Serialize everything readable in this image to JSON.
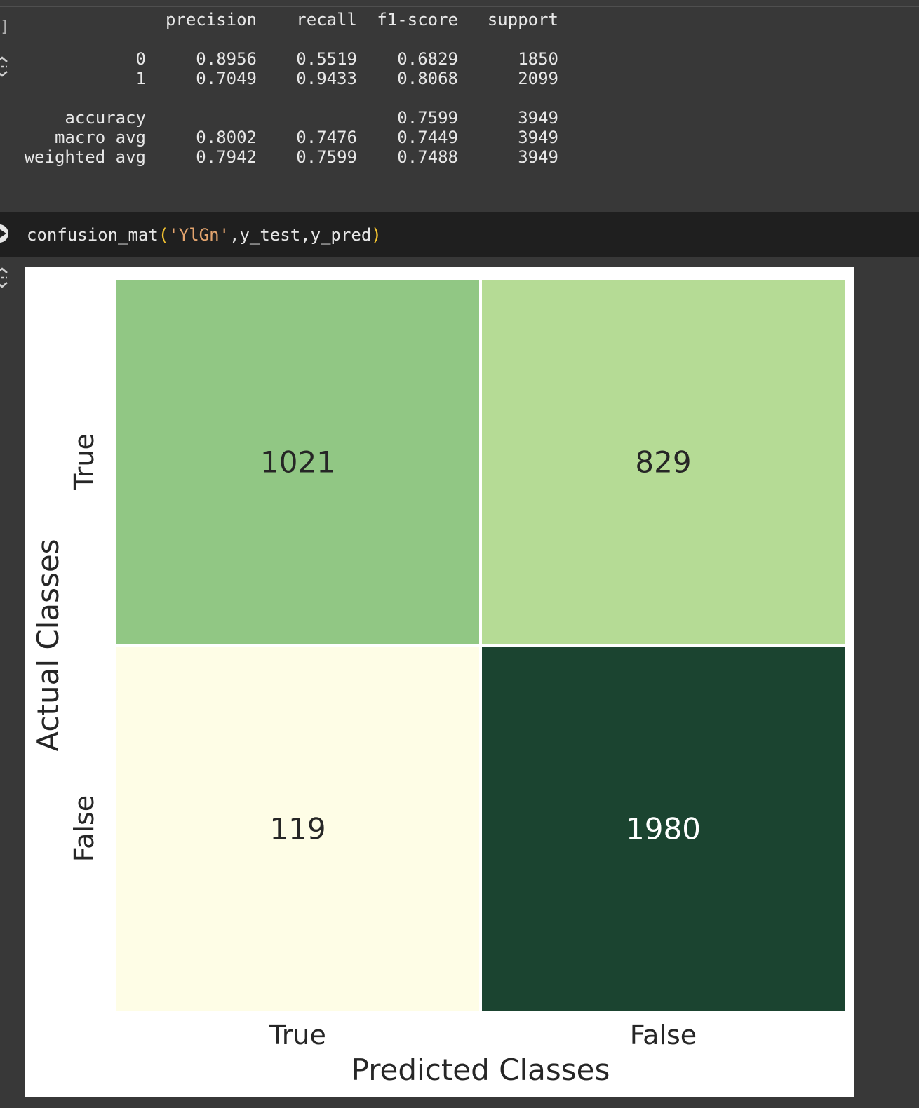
{
  "gutter": {
    "bracket": "]"
  },
  "report": {
    "headers": [
      "precision",
      "recall",
      "f1-score",
      "support"
    ],
    "rows": [
      {
        "label": "0",
        "precision": "0.8956",
        "recall": "0.5519",
        "f1": "0.6829",
        "support": "1850"
      },
      {
        "label": "1",
        "precision": "0.7049",
        "recall": "0.9433",
        "f1": "0.8068",
        "support": "2099"
      },
      {
        "label": "accuracy",
        "precision": "",
        "recall": "",
        "f1": "0.7599",
        "support": "3949"
      },
      {
        "label": "macro avg",
        "precision": "0.8002",
        "recall": "0.7476",
        "f1": "0.7449",
        "support": "3949"
      },
      {
        "label": "weighted avg",
        "precision": "0.7942",
        "recall": "0.7599",
        "f1": "0.7488",
        "support": "3949"
      }
    ]
  },
  "code_cell": {
    "func": "confusion_mat",
    "open_paren": "(",
    "arg_string": "'YlGn'",
    "args_rest": ",y_test,y_pred",
    "close_paren": ")"
  },
  "chart_data": {
    "type": "heatmap",
    "colormap": "YlGn",
    "rows": [
      "True",
      "False"
    ],
    "columns": [
      "True",
      "False"
    ],
    "values": [
      [
        1021,
        829
      ],
      [
        119,
        1980
      ]
    ],
    "xlabel": "Predicted Classes",
    "ylabel": "Actual Classes",
    "cell_colors": [
      [
        "#91c784",
        "#b5db95"
      ],
      [
        "#fefde6",
        "#1b4430"
      ]
    ],
    "text_colors": [
      [
        "#262626",
        "#262626"
      ],
      [
        "#262626",
        "#ffffff"
      ]
    ]
  }
}
